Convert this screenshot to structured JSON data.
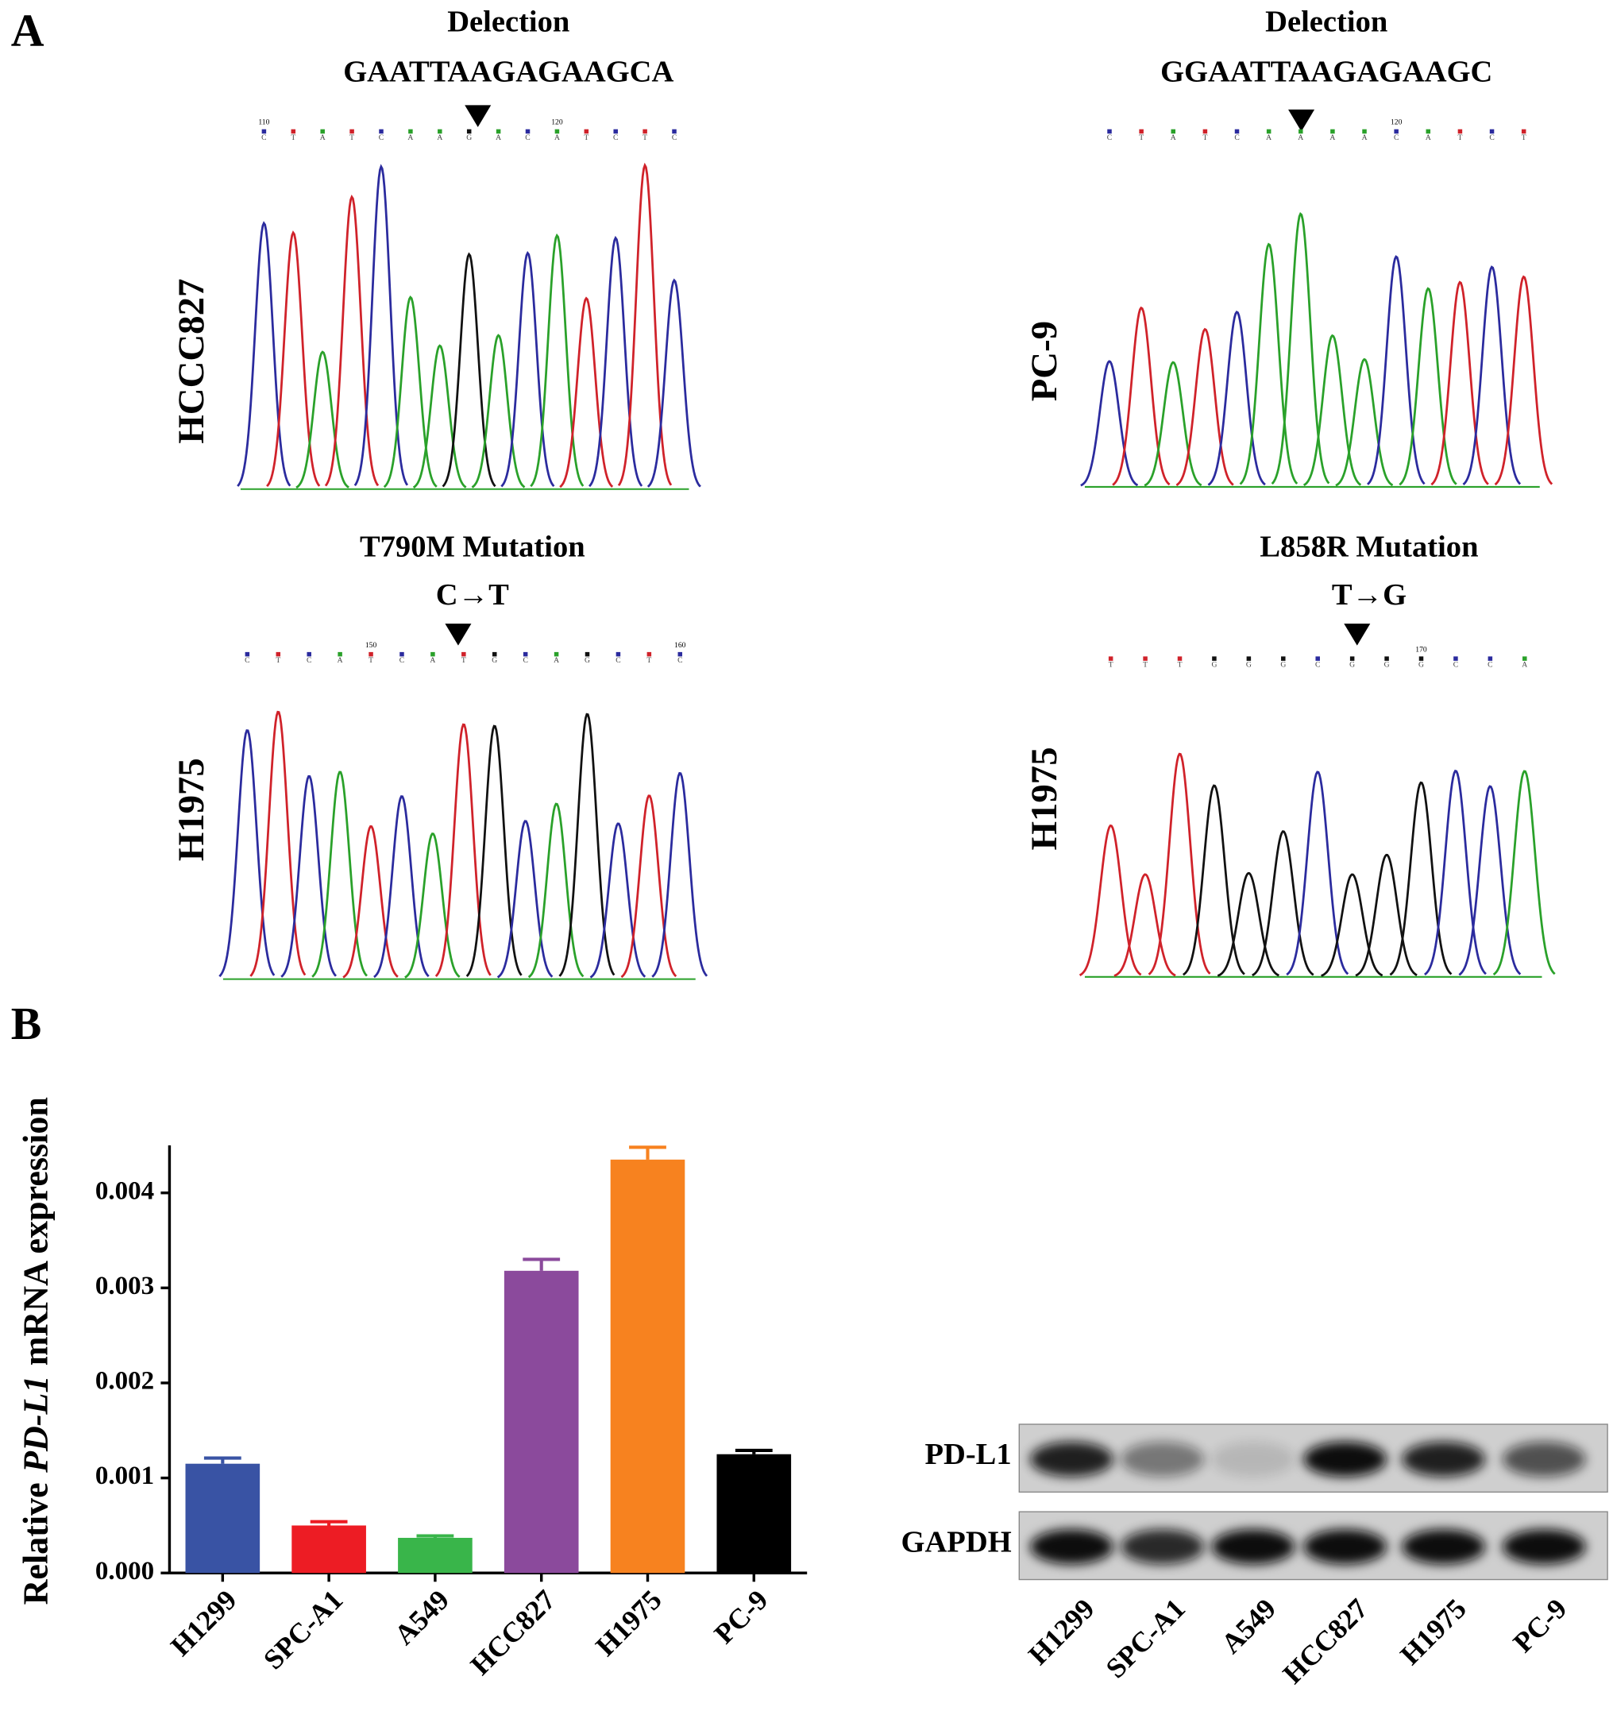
{
  "panel_labels": [
    "A",
    "B"
  ],
  "sequencing": [
    {
      "sample": "HCCC827",
      "title": "Delection",
      "subtitle": "GAATTAAGAGAAGCA",
      "bases": [
        "C",
        "T",
        "A",
        "T",
        "C",
        "A",
        "A",
        "G",
        "A",
        "C",
        "A",
        "T",
        "C",
        "T",
        "C"
      ],
      "positions": [
        110,
        null,
        null,
        null,
        null,
        null,
        null,
        null,
        null,
        null,
        120,
        null,
        null,
        null,
        null
      ]
    },
    {
      "sample": "PC-9",
      "title": "Delection",
      "subtitle": "GGAATTAAGAGAAGC",
      "bases": [
        "C",
        "T",
        "A",
        "T",
        "C",
        "A",
        "A",
        "A",
        "A",
        "C",
        "A",
        "T",
        "C",
        "T"
      ],
      "positions": [
        null,
        null,
        null,
        null,
        null,
        null,
        null,
        null,
        null,
        120,
        null,
        null,
        null,
        null
      ]
    },
    {
      "sample": "H1975",
      "title": "T790M Mutation",
      "subtitle": "C→T",
      "bases": [
        "C",
        "T",
        "C",
        "A",
        "T",
        "C",
        "A",
        "T",
        "G",
        "C",
        "A",
        "G",
        "C",
        "T",
        "C"
      ],
      "positions": [
        null,
        null,
        null,
        null,
        150,
        null,
        null,
        null,
        null,
        null,
        null,
        null,
        null,
        null,
        160
      ]
    },
    {
      "sample": "H1975",
      "title": "L858R Mutation",
      "subtitle": "T→G",
      "bases": [
        "T",
        "T",
        "T",
        "G",
        "G",
        "G",
        "C",
        "G",
        "G",
        "G",
        "C",
        "C",
        "A"
      ],
      "positions": [
        null,
        null,
        null,
        null,
        null,
        null,
        null,
        null,
        null,
        170,
        null,
        null,
        null
      ]
    }
  ],
  "chart_data": {
    "type": "bar",
    "y_label": [
      "Relative",
      "PD-L1",
      "mRNA expression"
    ],
    "categories": [
      "H1299",
      "SPC-A1",
      "A549",
      "HCC827",
      "H1975",
      "PC-9"
    ],
    "values": [
      0.00115,
      0.0005,
      0.00037,
      0.00318,
      0.00435,
      0.00125
    ],
    "errors": [
      6e-05,
      4e-05,
      2e-05,
      0.00012,
      0.00013,
      4e-05
    ],
    "colors": [
      "#3953a4",
      "#ed1c24",
      "#39b54a",
      "#8b4a9c",
      "#f7821f",
      "#000000"
    ],
    "ylim": [
      0,
      0.0045
    ],
    "yticks": [
      {
        "value": 0,
        "label": "0.000"
      },
      0.001,
      0.002,
      0.003,
      0.004
    ]
  },
  "blot": {
    "rows": [
      "PD-L1",
      "GAPDH"
    ],
    "lanes": [
      "H1299",
      "SPC-A1",
      "A549",
      "HCC827",
      "H1975",
      "PC-9"
    ]
  }
}
